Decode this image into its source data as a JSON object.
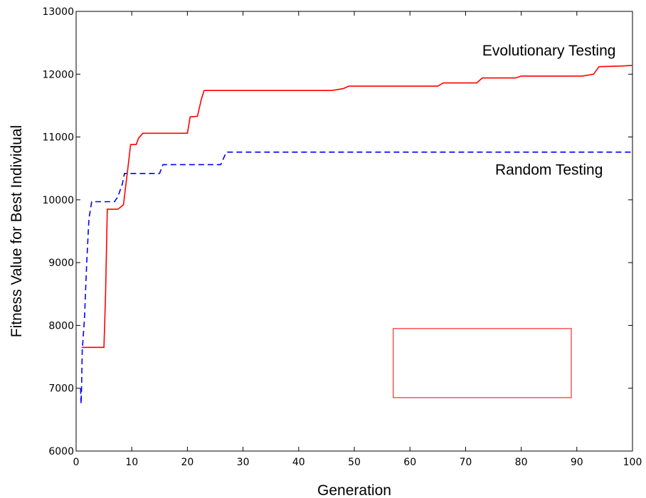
{
  "chart_data": {
    "type": "line",
    "xlabel": "Generation",
    "ylabel": "Fitness Value for Best Individual",
    "xlim": [
      0,
      100
    ],
    "ylim": [
      6000,
      13000
    ],
    "x_ticks": [
      0,
      10,
      20,
      30,
      40,
      50,
      60,
      70,
      80,
      90,
      100
    ],
    "x_tick_labels": [
      "0",
      "10",
      "20",
      "30",
      "40",
      "50",
      "60",
      "70",
      "80",
      "90",
      "100"
    ],
    "y_ticks": [
      6000,
      7000,
      8000,
      9000,
      10000,
      11000,
      12000,
      13000
    ],
    "y_tick_labels": [
      "6000",
      "7000",
      "8000",
      "9000",
      "10000",
      "11000",
      "12000",
      "13000"
    ],
    "grid": false,
    "legend": "none",
    "annotations": [
      {
        "text": "Evolutionary Testing",
        "x": 85,
        "y": 12300
      },
      {
        "text": "Random Testing",
        "x": 85,
        "y": 10400
      }
    ],
    "series": [
      {
        "name": "Evolutionary Testing",
        "color": "#ff0000",
        "style": "solid",
        "points": [
          [
            1,
            7650
          ],
          [
            5,
            7650
          ],
          [
            5.3,
            8500
          ],
          [
            5.6,
            9850
          ],
          [
            7.5,
            9850
          ],
          [
            8.5,
            9920
          ],
          [
            9.3,
            10500
          ],
          [
            9.8,
            10880
          ],
          [
            10.8,
            10880
          ],
          [
            11.2,
            10980
          ],
          [
            12,
            11060
          ],
          [
            20,
            11060
          ],
          [
            20.5,
            11320
          ],
          [
            21.8,
            11330
          ],
          [
            22.5,
            11600
          ],
          [
            23,
            11740
          ],
          [
            46,
            11740
          ],
          [
            48,
            11770
          ],
          [
            49,
            11810
          ],
          [
            65,
            11810
          ],
          [
            66,
            11860
          ],
          [
            72,
            11860
          ],
          [
            73,
            11940
          ],
          [
            79,
            11940
          ],
          [
            80,
            11970
          ],
          [
            91,
            11970
          ],
          [
            93,
            12000
          ],
          [
            94,
            12120
          ],
          [
            98,
            12130
          ],
          [
            100,
            12140
          ]
        ]
      },
      {
        "name": "Random Testing",
        "color": "#0000ff",
        "style": "dashed",
        "points": [
          [
            0.8,
            7000
          ],
          [
            0.9,
            6750
          ],
          [
            1,
            7100
          ],
          [
            1.1,
            7600
          ],
          [
            1.5,
            8100
          ],
          [
            1.9,
            9000
          ],
          [
            2.3,
            9700
          ],
          [
            2.8,
            9970
          ],
          [
            6.9,
            9970
          ],
          [
            7.5,
            10050
          ],
          [
            8.3,
            10250
          ],
          [
            8.7,
            10420
          ],
          [
            15,
            10420
          ],
          [
            15.6,
            10560
          ],
          [
            26,
            10560
          ],
          [
            27,
            10760
          ],
          [
            100,
            10760
          ]
        ]
      }
    ],
    "overlay_box": {
      "x0": 57,
      "x1": 89,
      "y0": 6850,
      "y1": 7950,
      "color": "#ff0000"
    }
  }
}
